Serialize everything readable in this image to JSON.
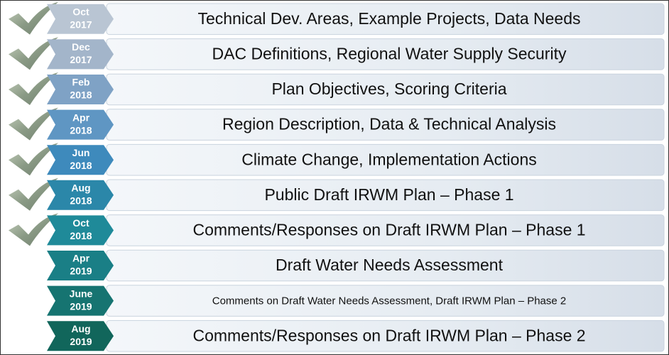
{
  "rows": [
    {
      "month": "Oct",
      "year": "2017",
      "text": "Technical Dev. Areas, Example Projects, Data Needs",
      "done": true,
      "color": "#b9c5d3"
    },
    {
      "month": "Dec",
      "year": "2017",
      "text": "DAC Definitions, Regional Water Supply Security",
      "done": true,
      "color": "#a3b5ca"
    },
    {
      "month": "Feb",
      "year": "2018",
      "text": "Plan Objectives, Scoring Criteria",
      "done": true,
      "color": "#7fa2c5"
    },
    {
      "month": "Apr",
      "year": "2018",
      "text": "Region Description, Data & Technical Analysis",
      "done": true,
      "color": "#5f96c3"
    },
    {
      "month": "Jun",
      "year": "2018",
      "text": "Climate Change, Implementation Actions",
      "done": true,
      "color": "#3e8abc"
    },
    {
      "month": "Aug",
      "year": "2018",
      "text": "Public Draft IRWM Plan – Phase 1",
      "done": true,
      "color": "#2b87a9"
    },
    {
      "month": "Oct",
      "year": "2018",
      "text": "Comments/Responses on Draft IRWM Plan – Phase 1",
      "done": true,
      "color": "#1f8a99"
    },
    {
      "month": "Apr",
      "year": "2019",
      "text": "Draft Water Needs Assessment",
      "done": false,
      "color": "#1a7f86"
    },
    {
      "month": "June",
      "year": "2019",
      "text": "Comments on Draft Water Needs Assessment, Draft IRWM Plan – Phase 2",
      "done": false,
      "color": "#167471"
    },
    {
      "month": "Aug",
      "year": "2019",
      "text": "Comments/Responses on Draft IRWM Plan – Phase 2",
      "done": false,
      "color": "#11665b"
    }
  ]
}
